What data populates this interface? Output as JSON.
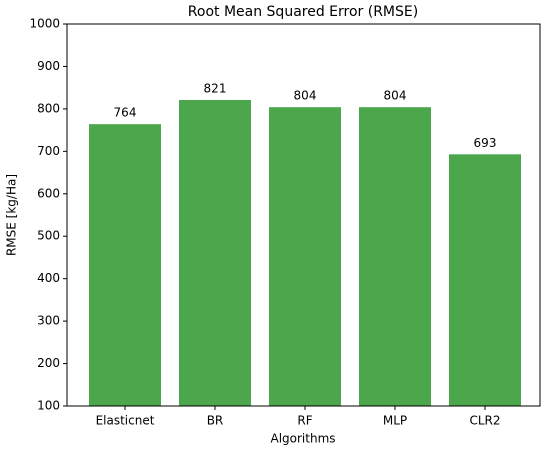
{
  "chart_data": {
    "type": "bar",
    "title": "Root Mean Squared Error (RMSE)",
    "x_label": "Algorithms",
    "y_label": "RMSE [kg/Ha]",
    "categories": [
      "Elasticnet",
      "BR",
      "RF",
      "MLP",
      "CLR2"
    ],
    "values": [
      764,
      821,
      804,
      804,
      693
    ],
    "color": "#4ca64c",
    "ylim": [
      100,
      1000
    ],
    "yticks": [
      100,
      200,
      300,
      400,
      500,
      600,
      700,
      800,
      900,
      1000
    ],
    "grid": false
  }
}
